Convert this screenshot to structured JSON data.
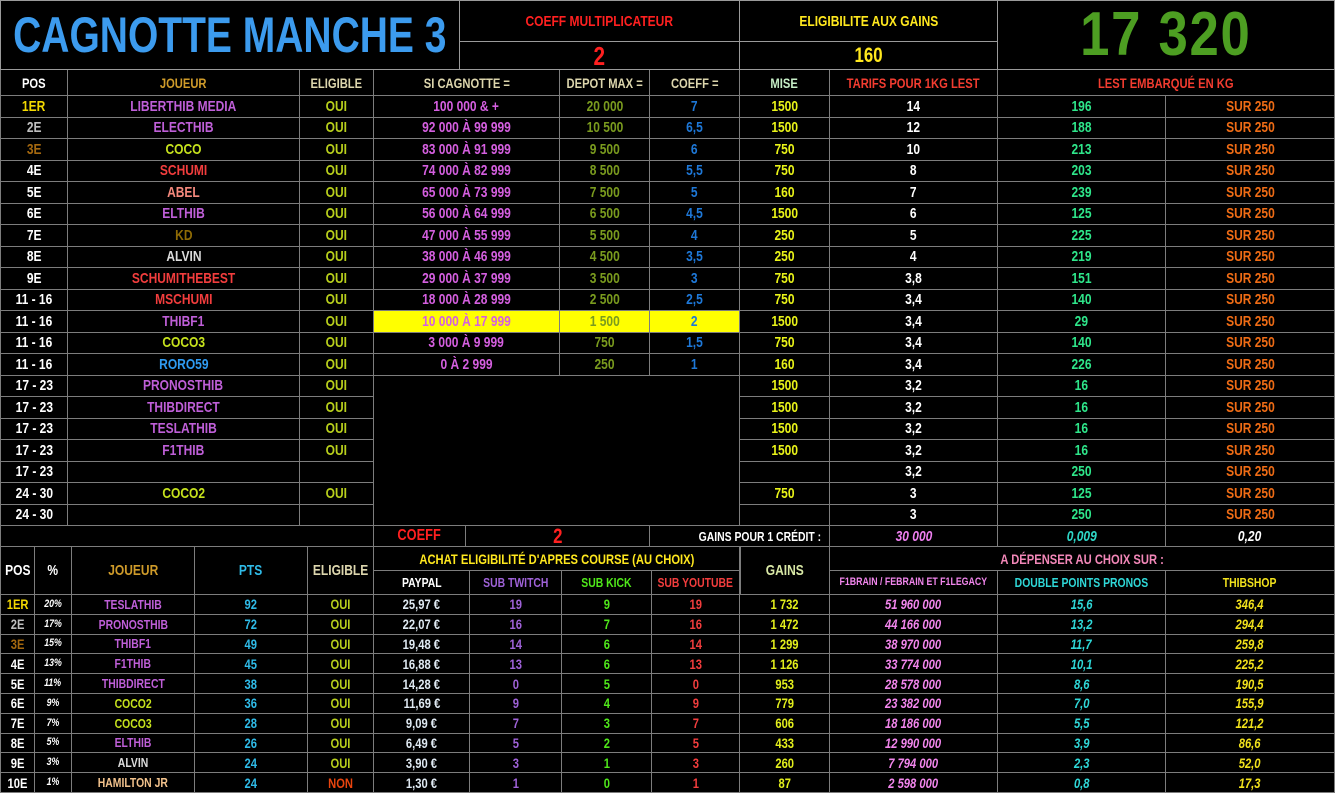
{
  "top_bar": {
    "title": "CAGNOTTE MANCHE 3",
    "coeff_label": "COEFF MULTIPLICATEUR",
    "coeff_value": "2",
    "eligibility_label": "ELIGIBILITE AUX GAINS",
    "eligibility_value": "160",
    "total_ballast": "17 320"
  },
  "pool_table": {
    "headers": {
      "pos": "POS",
      "joueur": "JOUEUR",
      "eligible": "ELIGIBLE",
      "si_cagnotte": "SI CAGNOTTE =",
      "depot_max": "DEPOT MAX =",
      "coeff": "COEFF =",
      "mise": "MISE",
      "tarif": "TARIFS POUR 1KG LEST",
      "lest": "LEST EMBARQUÉ EN KG"
    },
    "rows": [
      {
        "pos": "1ER",
        "pos_color": "pos_gold",
        "player": "LIBERTHIB MEDIA",
        "player_color": "violet",
        "eligible": "OUI",
        "range": "100 000 & +",
        "depot": "20 000",
        "coeff": "7",
        "mise": "1500",
        "tarif": "14",
        "lest": "196",
        "sur": "SUR 250"
      },
      {
        "pos": "2E",
        "pos_color": "pos_silver",
        "player": "ELECTHIB",
        "player_color": "violet",
        "eligible": "OUI",
        "range": "92 000 À 99 999",
        "depot": "10 500",
        "coeff": "6,5",
        "mise": "1500",
        "tarif": "12",
        "lest": "188",
        "sur": "SUR 250"
      },
      {
        "pos": "3E",
        "pos_color": "pos_bronze",
        "player": "COCO",
        "player_color": "lime",
        "eligible": "OUI",
        "range": "83 000 À 91 999",
        "depot": "9 500",
        "coeff": "6",
        "mise": "750",
        "tarif": "10",
        "lest": "213",
        "sur": "SUR 250"
      },
      {
        "pos": "4E",
        "pos_color": "white",
        "player": "SCHUMI",
        "player_color": "name_red",
        "eligible": "OUI",
        "range": "74 000 À 82 999",
        "depot": "8 500",
        "coeff": "5,5",
        "mise": "750",
        "tarif": "8",
        "lest": "203",
        "sur": "SUR 250"
      },
      {
        "pos": "5E",
        "pos_color": "white",
        "player": "ABEL",
        "player_color": "salmon",
        "eligible": "OUI",
        "range": "65 000 À 73 999",
        "depot": "7 500",
        "coeff": "5",
        "mise": "160",
        "tarif": "7",
        "lest": "239",
        "sur": "SUR 250"
      },
      {
        "pos": "6E",
        "pos_color": "white",
        "player": "ELTHIB",
        "player_color": "violet",
        "eligible": "OUI",
        "range": "56 000 À 64 999",
        "depot": "6 500",
        "coeff": "4,5",
        "mise": "1500",
        "tarif": "6",
        "lest": "125",
        "sur": "SUR 250"
      },
      {
        "pos": "7E",
        "pos_color": "white",
        "player": "KD",
        "player_color": "dark_gold",
        "eligible": "OUI",
        "range": "47 000 À 55 999",
        "depot": "5 500",
        "coeff": "4",
        "mise": "250",
        "tarif": "5",
        "lest": "225",
        "sur": "SUR 250"
      },
      {
        "pos": "8E",
        "pos_color": "white",
        "player": "ALVIN",
        "player_color": "light_gray",
        "eligible": "OUI",
        "range": "38 000 À 46 999",
        "depot": "4 500",
        "coeff": "3,5",
        "mise": "250",
        "tarif": "4",
        "lest": "219",
        "sur": "SUR 250"
      },
      {
        "pos": "9E",
        "pos_color": "white",
        "player": "SCHUMITHEBEST",
        "player_color": "name_red",
        "eligible": "OUI",
        "range": "29 000 À 37 999",
        "depot": "3 500",
        "coeff": "3",
        "mise": "750",
        "tarif": "3,8",
        "lest": "151",
        "sur": "SUR 250"
      },
      {
        "pos": "11 - 16",
        "pos_color": "white",
        "player": "MSCHUMI",
        "player_color": "name_red",
        "eligible": "OUI",
        "range": "18 000 À 28 999",
        "depot": "2 500",
        "coeff": "2,5",
        "mise": "750",
        "tarif": "3,4",
        "lest": "140",
        "sur": "SUR 250"
      },
      {
        "pos": "11 - 16",
        "pos_color": "white",
        "player": "THIBF1",
        "player_color": "violet",
        "eligible": "OUI",
        "range": "10 000 À 17 999",
        "depot": "1 500",
        "coeff": "2",
        "mise": "1500",
        "tarif": "3,4",
        "lest": "29",
        "sur": "SUR 250",
        "highlight": true
      },
      {
        "pos": "11 - 16",
        "pos_color": "white",
        "player": "COCO3",
        "player_color": "lime",
        "eligible": "OUI",
        "range": "3 000 À 9 999",
        "depot": "750",
        "coeff": "1,5",
        "mise": "750",
        "tarif": "3,4",
        "lest": "140",
        "sur": "SUR 250"
      },
      {
        "pos": "11 - 16",
        "pos_color": "white",
        "player": "RORO59",
        "player_color": "roro_blue",
        "eligible": "OUI",
        "range": "0 À 2 999",
        "depot": "250",
        "coeff": "1",
        "mise": "160",
        "tarif": "3,4",
        "lest": "226",
        "sur": "SUR 250"
      },
      {
        "pos": "17 - 23",
        "pos_color": "white",
        "player": "PRONOSTHIB",
        "player_color": "violet",
        "eligible": "OUI",
        "range": null,
        "depot": null,
        "coeff": null,
        "mise": "1500",
        "tarif": "3,2",
        "lest": "16",
        "sur": "SUR 250"
      },
      {
        "pos": "17 - 23",
        "pos_color": "white",
        "player": "THIBDIRECT",
        "player_color": "violet",
        "eligible": "OUI",
        "range": null,
        "depot": null,
        "coeff": null,
        "mise": "1500",
        "tarif": "3,2",
        "lest": "16",
        "sur": "SUR 250"
      },
      {
        "pos": "17 - 23",
        "pos_color": "white",
        "player": "TESLATHIB",
        "player_color": "violet",
        "eligible": "OUI",
        "range": null,
        "depot": null,
        "coeff": null,
        "mise": "1500",
        "tarif": "3,2",
        "lest": "16",
        "sur": "SUR 250"
      },
      {
        "pos": "17 - 23",
        "pos_color": "white",
        "player": "F1THIB",
        "player_color": "violet",
        "eligible": "OUI",
        "range": null,
        "depot": null,
        "coeff": null,
        "mise": "1500",
        "tarif": "3,2",
        "lest": "16",
        "sur": "SUR 250"
      },
      {
        "pos": "17 - 23",
        "pos_color": "white",
        "player": "",
        "player_color": "white",
        "eligible": "",
        "range": null,
        "depot": null,
        "coeff": null,
        "mise": "",
        "tarif": "3,2",
        "lest": "250",
        "sur": "SUR 250"
      },
      {
        "pos": "24 - 30",
        "pos_color": "white",
        "player": "COCO2",
        "player_color": "lime",
        "eligible": "OUI",
        "range": null,
        "depot": null,
        "coeff": null,
        "mise": "750",
        "tarif": "3",
        "lest": "125",
        "sur": "SUR 250"
      },
      {
        "pos": "24 - 30",
        "pos_color": "white",
        "player": "",
        "player_color": "white",
        "eligible": "",
        "range": null,
        "depot": null,
        "coeff": null,
        "mise": "",
        "tarif": "3",
        "lest": "250",
        "sur": "SUR 250"
      }
    ],
    "footer": {
      "coeff_label": "COEFF",
      "coeff_value": "2",
      "gains_label": "GAINS POUR 1 CRÉDIT :",
      "gains_value": "30 000",
      "lest_col_value": "0,009",
      "sur_col_value": "0,20"
    }
  },
  "standings_table": {
    "headers": {
      "pos": "POS",
      "pct": "%",
      "joueur": "JOUEUR",
      "pts": "PTS",
      "eligible": "ELIGIBLE",
      "achat": "ACHAT ELIGIBILITÉ D'APRES COURSE (AU CHOIX)",
      "paypal": "PAYPAL",
      "sub_twitch": "SUB TWITCH",
      "sub_kick": "SUB KICK",
      "sub_youtube": "SUB YOUTUBE",
      "gains": "GAINS",
      "depenser": "A DÉPENSER AU CHOIX SUR :",
      "f1brain": "F1BRAIN / FEBRAIN ET F1LEGACY",
      "double_points": "DOUBLE POINTS PRONOS",
      "thibshop": "THIBSHOP"
    },
    "rows": [
      {
        "pos": "1ER",
        "pos_color": "pos_gold",
        "pct": "20%",
        "player": "TESLATHIB",
        "player_color": "violet",
        "pts": "92",
        "eligible": "OUI",
        "paypal": "25,97 €",
        "sub_twitch": "19",
        "sub_kick": "9",
        "sub_youtube": "19",
        "gains": "1 732",
        "f1brain": "51 960 000",
        "double_points": "15,6",
        "thibshop": "346,4"
      },
      {
        "pos": "2E",
        "pos_color": "pos_silver",
        "pct": "17%",
        "player": "PRONOSTHIB",
        "player_color": "violet",
        "pts": "72",
        "eligible": "OUI",
        "paypal": "22,07 €",
        "sub_twitch": "16",
        "sub_kick": "7",
        "sub_youtube": "16",
        "gains": "1 472",
        "f1brain": "44 166 000",
        "double_points": "13,2",
        "thibshop": "294,4"
      },
      {
        "pos": "3E",
        "pos_color": "pos_bronze",
        "pct": "15%",
        "player": "THIBF1",
        "player_color": "violet",
        "pts": "49",
        "eligible": "OUI",
        "paypal": "19,48 €",
        "sub_twitch": "14",
        "sub_kick": "6",
        "sub_youtube": "14",
        "gains": "1 299",
        "f1brain": "38 970 000",
        "double_points": "11,7",
        "thibshop": "259,8"
      },
      {
        "pos": "4E",
        "pos_color": "white",
        "pct": "13%",
        "player": "F1THIB",
        "player_color": "violet",
        "pts": "45",
        "eligible": "OUI",
        "paypal": "16,88 €",
        "sub_twitch": "13",
        "sub_kick": "6",
        "sub_youtube": "13",
        "gains": "1 126",
        "f1brain": "33 774 000",
        "double_points": "10,1",
        "thibshop": "225,2"
      },
      {
        "pos": "5E",
        "pos_color": "white",
        "pct": "11%",
        "player": "THIBDIRECT",
        "player_color": "violet",
        "pts": "38",
        "eligible": "OUI",
        "paypal": "14,28 €",
        "sub_twitch": "0",
        "sub_kick": "5",
        "sub_youtube": "0",
        "gains": "953",
        "f1brain": "28 578 000",
        "double_points": "8,6",
        "thibshop": "190,5"
      },
      {
        "pos": "6E",
        "pos_color": "white",
        "pct": "9%",
        "player": "COCO2",
        "player_color": "lime",
        "pts": "36",
        "eligible": "OUI",
        "paypal": "11,69 €",
        "sub_twitch": "9",
        "sub_kick": "4",
        "sub_youtube": "9",
        "gains": "779",
        "f1brain": "23 382 000",
        "double_points": "7,0",
        "thibshop": "155,9"
      },
      {
        "pos": "7E",
        "pos_color": "white",
        "pct": "7%",
        "player": "COCO3",
        "player_color": "lime",
        "pts": "28",
        "eligible": "OUI",
        "paypal": "9,09 €",
        "sub_twitch": "7",
        "sub_kick": "3",
        "sub_youtube": "7",
        "gains": "606",
        "f1brain": "18 186 000",
        "double_points": "5,5",
        "thibshop": "121,2"
      },
      {
        "pos": "8E",
        "pos_color": "white",
        "pct": "5%",
        "player": "ELTHIB",
        "player_color": "violet",
        "pts": "26",
        "eligible": "OUI",
        "paypal": "6,49 €",
        "sub_twitch": "5",
        "sub_kick": "2",
        "sub_youtube": "5",
        "gains": "433",
        "f1brain": "12 990 000",
        "double_points": "3,9",
        "thibshop": "86,6"
      },
      {
        "pos": "9E",
        "pos_color": "white",
        "pct": "3%",
        "player": "ALVIN",
        "player_color": "light_gray",
        "pts": "24",
        "eligible": "OUI",
        "paypal": "3,90 €",
        "sub_twitch": "3",
        "sub_kick": "1",
        "sub_youtube": "3",
        "gains": "260",
        "f1brain": "7 794 000",
        "double_points": "2,3",
        "thibshop": "52,0"
      },
      {
        "pos": "10E",
        "pos_color": "white",
        "pct": "1%",
        "player": "HAMILTON JR",
        "player_color": "peach",
        "pts": "24",
        "eligible": "NON",
        "paypal": "1,30 €",
        "sub_twitch": "1",
        "sub_kick": "0",
        "sub_youtube": "1",
        "gains": "87",
        "f1brain": "2 598 000",
        "double_points": "0,8",
        "thibshop": "17,3"
      }
    ]
  },
  "palette": {
    "white": "#ffffff",
    "title_blue": "#3c9bee",
    "red": "#ff2020",
    "header_red": "#f23c30",
    "yellow": "#ffe81e",
    "big_green": "#4d9e22",
    "gold_header": "#cf9b2a",
    "beige": "#ddd6ad",
    "mint": "#c6eec6",
    "cyan_header": "#2fbbe8",
    "oui": "#b8cf1c",
    "non": "#e8440e",
    "violet": "#bf5fd8",
    "range_violet": "#d55fe0",
    "olive": "#7a9b1e",
    "coeff_blue": "#1e78d8",
    "mise_yellow": "#e9f318",
    "lest_green": "#2ee68a",
    "sur_orange": "#ef6c15",
    "pos_gold": "#f2d800",
    "pos_silver": "#bfbfbf",
    "pos_bronze": "#a4680f",
    "name_red": "#f23d3d",
    "salmon": "#f5897d",
    "dark_gold": "#8f6b05",
    "light_gray": "#dcdcdc",
    "roro_blue": "#2f9bf2",
    "lime": "#c6e21d",
    "peach": "#f2c28c",
    "paypal_val": "#dfe9f2",
    "twitch": "#9f62d8",
    "kick": "#50e81a",
    "youtube": "#f23d3d",
    "gains_yellow": "#e3ef1c",
    "pink": "#f286ed",
    "double_cyan": "#2fd8d8",
    "shop_yellow": "#f2e21c",
    "pink_header": "#f287b8",
    "gains_header": "#d9e8a6",
    "credit_pink": "#ee7ff0",
    "credit_cyan": "#2fd8c8",
    "highlight": "#ffff00"
  }
}
